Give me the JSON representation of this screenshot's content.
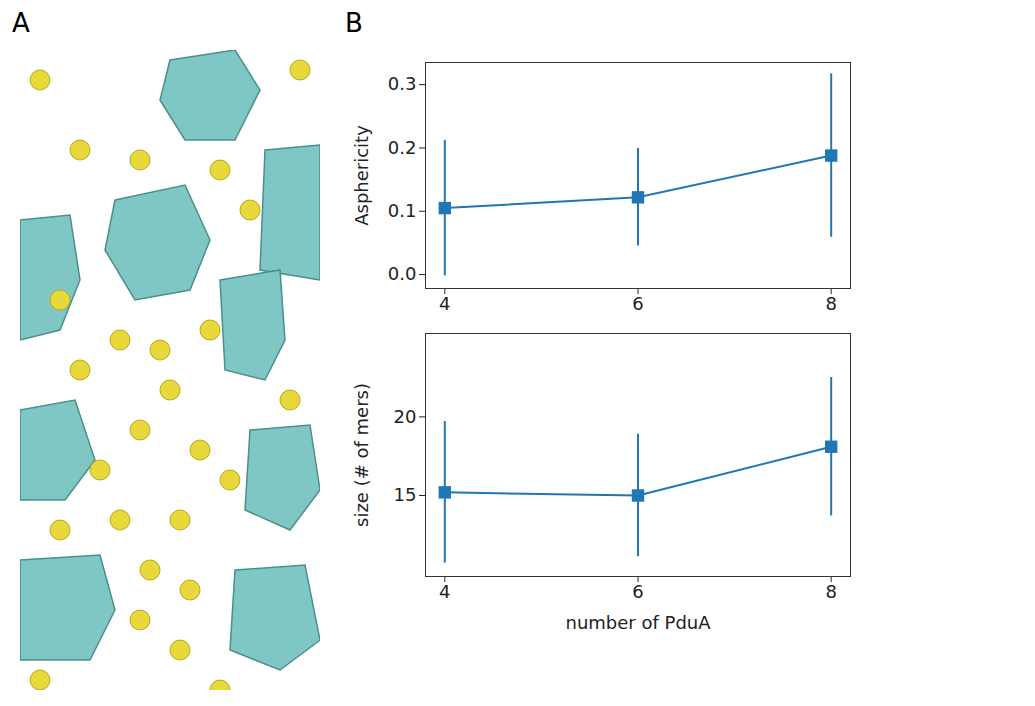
{
  "panel_labels": [
    "A",
    "B"
  ],
  "chart_data": [
    {
      "type": "line",
      "x": [
        4,
        6,
        8
      ],
      "series": [
        {
          "values": [
            0.105,
            0.122,
            0.188
          ],
          "errors": [
            0.107,
            0.077,
            0.129
          ],
          "color": "#1f77b4",
          "marker": "square"
        }
      ],
      "ylabel": "Asphericity",
      "xlim": [
        3.8,
        8.2
      ],
      "xticks": [
        4,
        6,
        8
      ],
      "ylim": [
        -0.022,
        0.335
      ],
      "yticks": [
        {
          "value": 0,
          "label": "0.0"
        },
        0.1,
        0.2,
        0.3
      ],
      "grid": false
    },
    {
      "type": "line",
      "x": [
        4,
        6,
        8
      ],
      "series": [
        {
          "values": [
            15.2,
            15.0,
            18.1
          ],
          "errors": [
            4.5,
            3.9,
            4.4
          ],
          "color": "#1f77b4",
          "marker": "square"
        }
      ],
      "xlabel": "number of PduA",
      "ylabel": "size (# of mers)",
      "xlim": [
        3.8,
        8.2
      ],
      "xticks": [
        4,
        6,
        8
      ],
      "ylim": [
        9.85,
        25.3
      ],
      "yticks": [
        15,
        20
      ],
      "grid": false
    }
  ]
}
